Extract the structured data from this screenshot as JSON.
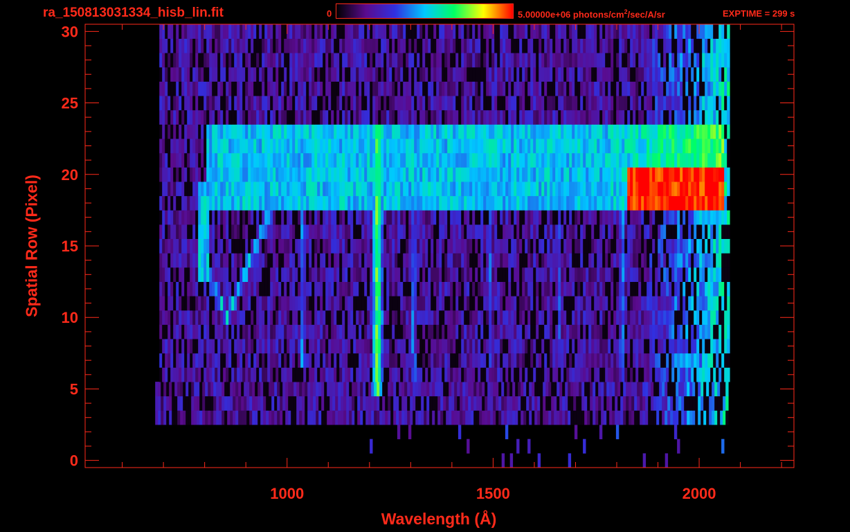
{
  "header": {
    "file_title": "ra_150813031334_hisb_lin.fit",
    "colorbar_min": "0",
    "colorbar_max_pre": "5.00000e+06 photons/cm",
    "colorbar_max_sup": "2",
    "colorbar_max_post": "/sec/A/sr",
    "exptime": "EXPTIME = 299 s"
  },
  "colors": {
    "axis": "#ff2a1a",
    "background": "#000000",
    "colormap": [
      "#000000",
      "#5a0b8e",
      "#3030e0",
      "#00c8ff",
      "#00ff64",
      "#ffff00",
      "#ff0000"
    ]
  },
  "chart_data": {
    "type": "heatmap",
    "title": "ra_150813031334_hisb_lin.fit",
    "xlabel": "Wavelength (Å)",
    "ylabel": "Spatial Row (Pixel)",
    "xlim": [
      510,
      2230
    ],
    "ylim": [
      -0.5,
      30.5
    ],
    "x_ticks": [
      1000,
      1500,
      2000
    ],
    "y_ticks": [
      0,
      5,
      10,
      15,
      20,
      25,
      30
    ],
    "colorbar_range": [
      0,
      5000000
    ],
    "colorbar_unit": "photons/cm^2/sec/A/sr",
    "exptime_s": 299,
    "features": [
      {
        "name": "H I 1216 emission line",
        "x": 1216,
        "y_range": [
          5,
          23
        ],
        "level": 0.75
      },
      {
        "name": "continuum band",
        "x_range": [
          800,
          2060
        ],
        "y_range": [
          18,
          23
        ],
        "level": 0.5
      },
      {
        "name": "bright red edge band",
        "x_range": [
          1820,
          2060
        ],
        "y_range": [
          18,
          20
        ],
        "level": 1.0
      },
      {
        "name": "curved feature",
        "x_range": [
          780,
          1000
        ],
        "y_range": [
          10,
          20
        ],
        "level": 0.55
      },
      {
        "name": "vertical line",
        "x": 1034,
        "y_range": [
          7,
          23
        ],
        "level": 0.45
      },
      {
        "name": "vertical line",
        "x": 1304,
        "y_range": [
          6,
          23
        ],
        "level": 0.45
      },
      {
        "name": "vertical line",
        "x": 1490,
        "y_range": [
          7,
          23
        ],
        "level": 0.4
      },
      {
        "name": "vertical line",
        "x": 1657,
        "y_range": [
          7,
          22
        ],
        "level": 0.35
      },
      {
        "name": "vertical line",
        "x": 1810,
        "y_range": [
          6,
          23
        ],
        "level": 0.45
      },
      {
        "name": "noise field",
        "x_range": [
          690,
          2070
        ],
        "y_range": [
          3,
          30
        ],
        "level": 0.12
      }
    ]
  }
}
